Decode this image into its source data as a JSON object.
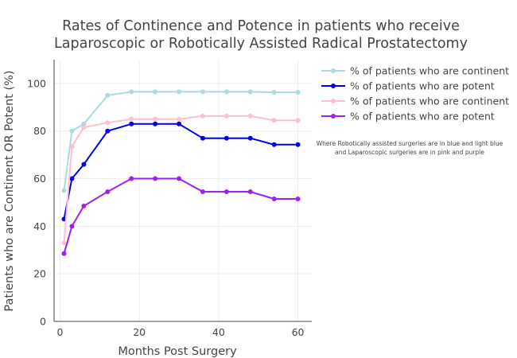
{
  "chart_data": {
    "type": "line",
    "title_line1": "Rates of Continence and Potence in patients who receive",
    "title_line2": "Laparoscopic or Robotically Assisted Radical Prostatectomy",
    "xlabel": "Months Post Surgery",
    "ylabel": "Patients who are Continent OR Potent (%)",
    "xlim": [
      -1.5,
      63.5
    ],
    "ylim": [
      0,
      110
    ],
    "x_ticks": [
      0,
      20,
      40,
      60
    ],
    "y_ticks": [
      0,
      20,
      40,
      60,
      80,
      100
    ],
    "grid": true,
    "legend_position": "top-right",
    "annotation_line1": "Where Robotically assisted surgeries are in blue and light blue",
    "annotation_line2": "and Laparoscopic surgeries are in pink and purple",
    "series": [
      {
        "name": "% of patients who are continent",
        "color": "#add8e6",
        "x": [
          1,
          3,
          6,
          12,
          18,
          24,
          30,
          36,
          42,
          48,
          54,
          60
        ],
        "y": [
          55,
          80,
          83,
          95,
          96.5,
          96.5,
          96.5,
          96.5,
          96.5,
          96.5,
          96.3,
          96.3
        ]
      },
      {
        "name": "% of patients who are potent",
        "color": "#0000ee",
        "x": [
          1,
          3,
          6,
          12,
          18,
          24,
          30,
          36,
          42,
          48,
          54,
          60
        ],
        "y": [
          43,
          60,
          66,
          80,
          83,
          83,
          83,
          77,
          77,
          77,
          74.3,
          74.3
        ]
      },
      {
        "name": "% of patients who are continent",
        "color": "#ffc0cb",
        "x": [
          1,
          3,
          6,
          12,
          18,
          24,
          30,
          36,
          42,
          48,
          54,
          60
        ],
        "y": [
          33,
          73.5,
          81.5,
          83.5,
          85,
          85,
          85,
          86.3,
          86.3,
          86.3,
          84.5,
          84.5
        ]
      },
      {
        "name": "% of patients who are potent",
        "color": "#a020f0",
        "x": [
          1,
          3,
          6,
          12,
          18,
          24,
          30,
          36,
          42,
          48,
          54,
          60
        ],
        "y": [
          28.5,
          40,
          48.5,
          54.5,
          60,
          60,
          60,
          54.5,
          54.5,
          54.5,
          51.5,
          51.5
        ]
      }
    ]
  }
}
